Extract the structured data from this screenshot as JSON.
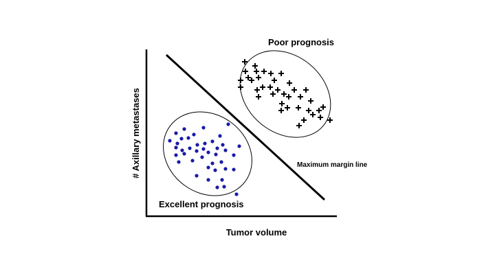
{
  "chart_data": {
    "type": "scatter",
    "xlabel": "Tumor volume",
    "ylabel": "# Axillary metastases",
    "series": [
      {
        "marker": "dot",
        "color": "#1a1aa8",
        "label": "Excellent prognosis",
        "points": [
          [
            332,
            181
          ],
          [
            268,
            188
          ],
          [
            296,
            186
          ],
          [
            256,
            194
          ],
          [
            282,
            196
          ],
          [
            264,
            202
          ],
          [
            274,
            201
          ],
          [
            320,
            198
          ],
          [
            247,
            205
          ],
          [
            258,
            209
          ],
          [
            287,
            211
          ],
          [
            298,
            209
          ],
          [
            309,
            206
          ],
          [
            324,
            211
          ],
          [
            348,
            213
          ],
          [
            256,
            215
          ],
          [
            265,
            219
          ],
          [
            276,
            216
          ],
          [
            286,
            220
          ],
          [
            296,
            217
          ],
          [
            316,
            216
          ],
          [
            328,
            219
          ],
          [
            256,
            226
          ],
          [
            268,
            224
          ],
          [
            303,
            222
          ],
          [
            314,
            225
          ],
          [
            340,
            226
          ],
          [
            294,
            229
          ],
          [
            280,
            234
          ],
          [
            260,
            236
          ],
          [
            309,
            238
          ],
          [
            322,
            236
          ],
          [
            303,
            244
          ],
          [
            313,
            248
          ],
          [
            328,
            246
          ],
          [
            340,
            247
          ],
          [
            286,
            256
          ],
          [
            303,
            262
          ],
          [
            323,
            262
          ],
          [
            316,
            273
          ],
          [
            326,
            272
          ],
          [
            344,
            283
          ]
        ]
      },
      {
        "marker": "plus",
        "color": "#000000",
        "label": "Poor prognosis",
        "points": [
          [
            356,
            90
          ],
          [
            371,
            96
          ],
          [
            357,
            104
          ],
          [
            373,
            104
          ],
          [
            384,
            104
          ],
          [
            394,
            107
          ],
          [
            409,
            107
          ],
          [
            361,
            113
          ],
          [
            376,
            113
          ],
          [
            350,
            117
          ],
          [
            366,
            117
          ],
          [
            399,
            117
          ],
          [
            350,
            127
          ],
          [
            382,
            127
          ],
          [
            393,
            127
          ],
          [
            421,
            121
          ],
          [
            374,
            131
          ],
          [
            404,
            131
          ],
          [
            428,
            131
          ],
          [
            445,
            131
          ],
          [
            413,
            137
          ],
          [
            376,
            141
          ],
          [
            420,
            141
          ],
          [
            437,
            141
          ],
          [
            397,
            137
          ],
          [
            410,
            151
          ],
          [
            452,
            147
          ],
          [
            418,
            157
          ],
          [
            434,
            157
          ],
          [
            449,
            161
          ],
          [
            464,
            161
          ],
          [
            470,
            156
          ],
          [
            409,
            161
          ],
          [
            466,
            171
          ],
          [
            480,
            175
          ],
          [
            442,
            175
          ],
          [
            455,
            167
          ],
          [
            435,
            183
          ]
        ]
      }
    ],
    "annotations": [
      "Poor prognosis",
      "Excellent prognosis",
      "Maximum margin line"
    ]
  }
}
